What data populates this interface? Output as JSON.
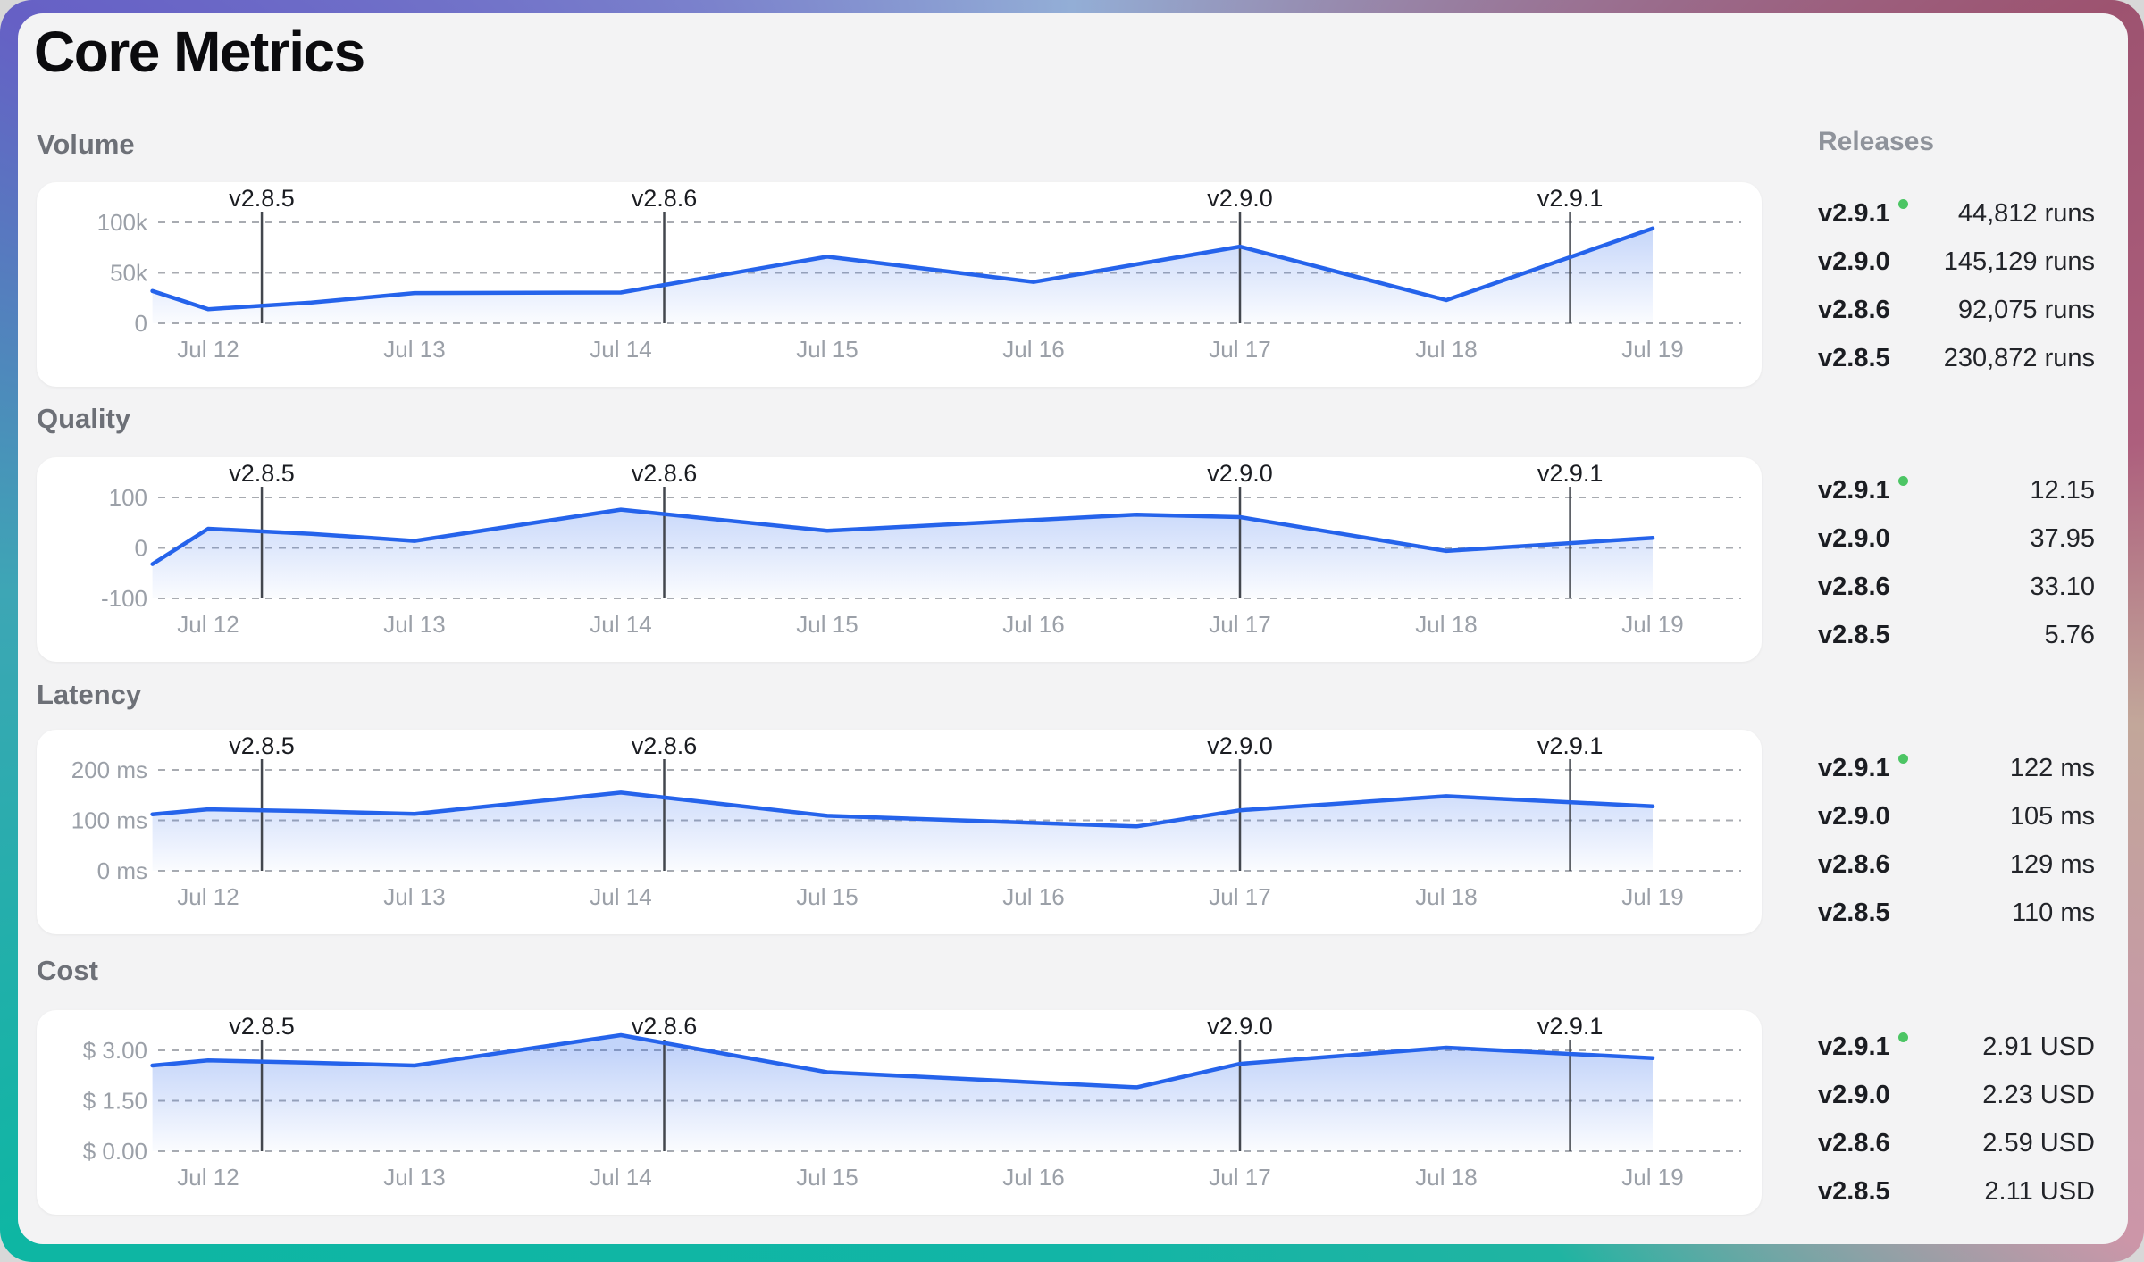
{
  "title": "Core Metrics",
  "releases_header": "Releases",
  "dates": [
    "Jul 12",
    "Jul 13",
    "Jul 14",
    "Jul 15",
    "Jul 16",
    "Jul 17",
    "Jul 18",
    "Jul 19"
  ],
  "release_markers": [
    {
      "label": "v2.8.5",
      "day": 0.26
    },
    {
      "label": "v2.8.6",
      "day": 2.21
    },
    {
      "label": "v2.9.0",
      "day": 5.0
    },
    {
      "label": "v2.9.1",
      "day": 6.6
    }
  ],
  "colors": {
    "line": "#2563eb",
    "area_top": "rgba(37,99,235,0.28)",
    "area_bottom": "rgba(37,99,235,0.02)",
    "grid": "#a8abb1",
    "marker_line": "#43474e",
    "axis_text": "#9ba0a8",
    "current_dot": "#4cc564",
    "panel_bg": "#f3f3f4",
    "card_bg": "#ffffff"
  },
  "sections": [
    {
      "label": "Volume",
      "releases": [
        {
          "version": "v2.9.1",
          "current": true,
          "value": "44,812 runs"
        },
        {
          "version": "v2.9.0",
          "current": false,
          "value": "145,129 runs"
        },
        {
          "version": "v2.8.6",
          "current": false,
          "value": "92,075 runs"
        },
        {
          "version": "v2.8.5",
          "current": false,
          "value": "230,872 runs"
        }
      ]
    },
    {
      "label": "Quality",
      "releases": [
        {
          "version": "v2.9.1",
          "current": true,
          "value": "12.15"
        },
        {
          "version": "v2.9.0",
          "current": false,
          "value": "37.95"
        },
        {
          "version": "v2.8.6",
          "current": false,
          "value": "33.10"
        },
        {
          "version": "v2.8.5",
          "current": false,
          "value": "5.76"
        }
      ]
    },
    {
      "label": "Latency",
      "releases": [
        {
          "version": "v2.9.1",
          "current": true,
          "value": "122 ms"
        },
        {
          "version": "v2.9.0",
          "current": false,
          "value": "105 ms"
        },
        {
          "version": "v2.8.6",
          "current": false,
          "value": "129 ms"
        },
        {
          "version": "v2.8.5",
          "current": false,
          "value": "110 ms"
        }
      ]
    },
    {
      "label": "Cost",
      "releases": [
        {
          "version": "v2.9.1",
          "current": true,
          "value": "2.91 USD"
        },
        {
          "version": "v2.9.0",
          "current": false,
          "value": "2.23 USD"
        },
        {
          "version": "v2.8.6",
          "current": false,
          "value": "2.59 USD"
        },
        {
          "version": "v2.8.5",
          "current": false,
          "value": "2.11 USD"
        }
      ]
    }
  ],
  "chart_data": [
    {
      "type": "area",
      "title": "Volume",
      "x_unit": "days since Jul 12 (fractional = intraday point)",
      "x": [
        -0.27,
        0,
        0.5,
        1,
        2,
        3,
        4,
        5,
        6,
        7
      ],
      "values": [
        32000,
        14000,
        20500,
        30000,
        30500,
        66000,
        41000,
        76000,
        23000,
        94000
      ],
      "y_ticks": [
        {
          "label": "100k",
          "value": 100000
        },
        {
          "label": "50k",
          "value": 50000
        },
        {
          "label": "0",
          "value": 0
        }
      ],
      "ylim": [
        0,
        113000
      ],
      "grid": true,
      "legend": false
    },
    {
      "type": "area",
      "title": "Quality",
      "x_unit": "days since Jul 12 (fractional = intraday point)",
      "x": [
        -0.27,
        0,
        0.5,
        1,
        2,
        3,
        4.5,
        5,
        6,
        7
      ],
      "values": [
        -32,
        38,
        28,
        14,
        76,
        34,
        66,
        61,
        -6,
        20
      ],
      "y_ticks": [
        {
          "label": "100",
          "value": 100
        },
        {
          "label": "0",
          "value": 0
        },
        {
          "label": "-100",
          "value": -100
        }
      ],
      "ylim": [
        -100,
        123
      ],
      "grid": true,
      "legend": false
    },
    {
      "type": "area",
      "title": "Latency",
      "x_unit": "days since Jul 12 (fractional = intraday point)",
      "x": [
        -0.27,
        0,
        0.5,
        1,
        2,
        3,
        4.5,
        5,
        6,
        7
      ],
      "values": [
        112,
        122,
        118,
        113,
        155,
        109,
        88,
        120,
        148,
        128
      ],
      "y_ticks": [
        {
          "label": "200 ms",
          "value": 200
        },
        {
          "label": "100 ms",
          "value": 100
        },
        {
          "label": "0 ms",
          "value": 0
        }
      ],
      "ylim": [
        0,
        223
      ],
      "grid": true,
      "legend": false
    },
    {
      "type": "area",
      "title": "Cost",
      "x_unit": "days since Jul 12 (fractional = intraday point)",
      "x": [
        -0.27,
        0,
        0.5,
        1,
        2,
        3,
        4.5,
        5,
        6,
        7
      ],
      "values": [
        2.55,
        2.7,
        2.63,
        2.55,
        3.45,
        2.35,
        1.9,
        2.6,
        3.08,
        2.77
      ],
      "y_ticks": [
        {
          "label": "$ 3.00",
          "value": 3.0
        },
        {
          "label": "$ 1.50",
          "value": 1.5
        },
        {
          "label": "$ 0.00",
          "value": 0.0
        }
      ],
      "ylim": [
        0,
        3.35
      ],
      "grid": true,
      "legend": false
    }
  ],
  "layout_tops": {
    "labels": [
      129,
      436,
      745,
      1054
    ],
    "cards": [
      189,
      497,
      802,
      1116
    ],
    "groups": [
      197,
      507,
      818,
      1130
    ]
  }
}
